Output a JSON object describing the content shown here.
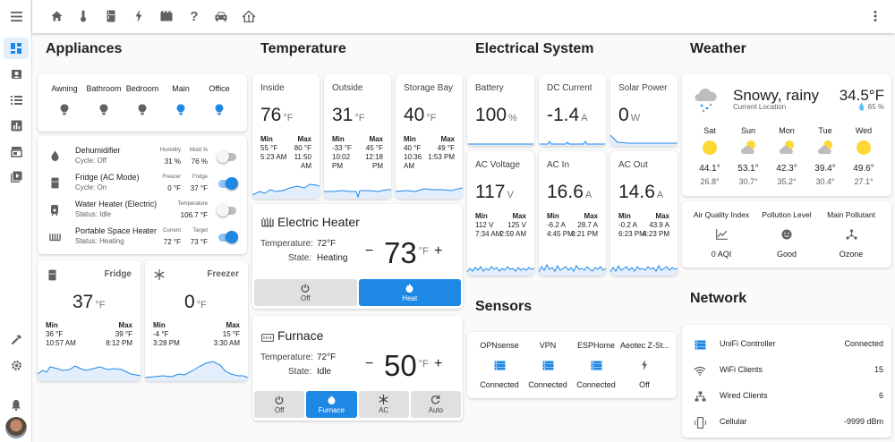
{
  "colors": {
    "accent": "#1e88e5",
    "sun": "#fdd835",
    "inactive": "#616161"
  },
  "topbar": {
    "icons": [
      "menu-icon",
      "home-icon",
      "thermometer-icon",
      "fridge-icon",
      "lightning-icon",
      "movie-icon",
      "help-icon",
      "car-icon",
      "home-assistant-icon",
      "more-vertical-icon"
    ]
  },
  "sidebar": {
    "icons": [
      "dashboard-icon",
      "account-box-icon",
      "list-icon",
      "chart-icon",
      "store-icon",
      "play-box-icon",
      "hammer-icon",
      "gear-icon",
      "bell-icon",
      "avatar"
    ]
  },
  "appliances": {
    "title": "Appliances",
    "lights": [
      {
        "label": "Awning",
        "on": false
      },
      {
        "label": "Bathroom",
        "on": false
      },
      {
        "label": "Bedroom",
        "on": false
      },
      {
        "label": "Main",
        "on": true
      },
      {
        "label": "Office",
        "on": true
      }
    ],
    "devices": [
      {
        "name": "Dehumidifier",
        "status": "Cycle: Off",
        "a_label": "Humidity",
        "a_val": "31 %",
        "b_label": "Mold %",
        "b_val": "76 %",
        "on": false
      },
      {
        "name": "Fridge (AC Mode)",
        "status": "Cycle: On",
        "a_label": "Freezer",
        "a_val": "0 °F",
        "b_label": "Fridge",
        "b_val": "37 °F",
        "on": true
      },
      {
        "name": "Water Heater (Electric)",
        "status": "Status: Idle",
        "a_label": "",
        "a_val": "",
        "b_label": "Temperature",
        "b_val": "106.7 °F",
        "on": false
      },
      {
        "name": "Portable Space Heater",
        "status": "Status: Heating",
        "a_label": "Current",
        "a_val": "72 °F",
        "b_label": "Target",
        "b_val": "73 °F",
        "on": true
      }
    ],
    "fridge": {
      "name": "Fridge",
      "value": "37",
      "unit": "°F",
      "min_label": "Min",
      "min_val": "36 °F",
      "min_time": "10:57 AM",
      "max_label": "Max",
      "max_val": "39 °F",
      "max_time": "8:12 PM"
    },
    "freezer": {
      "name": "Freezer",
      "value": "0",
      "unit": "°F",
      "min_label": "Min",
      "min_val": "-4 °F",
      "min_time": "3:28 PM",
      "max_label": "Max",
      "max_val": "15 °F",
      "max_time": "3:30 AM"
    }
  },
  "temperature": {
    "title": "Temperature",
    "sensors": [
      {
        "name": "Inside",
        "value": "76",
        "unit": "°F",
        "min_val": "55 °F",
        "min_time": "5:23 AM",
        "max_val": "80 °F",
        "max_time": "11:50 AM"
      },
      {
        "name": "Outside",
        "value": "31",
        "unit": "°F",
        "min_val": "-33 °F",
        "min_time": "10:02 PM",
        "max_val": "45 °F",
        "max_time": "12:18 PM"
      },
      {
        "name": "Storage Bay",
        "value": "40",
        "unit": "°F",
        "min_val": "40 °F",
        "min_time": "10:36 AM",
        "max_val": "49 °F",
        "max_time": "1:53 PM"
      }
    ],
    "min_label": "Min",
    "max_label": "Max",
    "heater": {
      "name": "Electric Heater",
      "temp_label": "Temperature:",
      "temp_val": "72°F",
      "state_label": "State:",
      "state_val": "Heating",
      "target": "73",
      "unit": "°F",
      "minus": "−",
      "plus": "+",
      "modes": [
        {
          "label": "Off",
          "active": false
        },
        {
          "label": "Heat",
          "active": true
        }
      ]
    },
    "furnace": {
      "name": "Furnace",
      "temp_label": "Temperature:",
      "temp_val": "72°F",
      "state_label": "State:",
      "state_val": "Idle",
      "target": "50",
      "unit": "°F",
      "minus": "−",
      "plus": "+",
      "modes": [
        {
          "label": "Off",
          "active": false
        },
        {
          "label": "Furnace",
          "active": true
        },
        {
          "label": "AC",
          "active": false
        },
        {
          "label": "Auto",
          "active": false
        }
      ]
    }
  },
  "electrical": {
    "title": "Electrical System",
    "top": [
      {
        "name": "Battery",
        "value": "100",
        "unit": "%"
      },
      {
        "name": "DC Current",
        "value": "-1.4",
        "unit": "A"
      },
      {
        "name": "Solar Power",
        "value": "0",
        "unit": "W"
      }
    ],
    "bottom": [
      {
        "name": "AC Voltage",
        "value": "117",
        "unit": "V",
        "min_val": "112 V",
        "min_time": "7:34 AM",
        "max_val": "125 V",
        "max_time": "2:59 AM"
      },
      {
        "name": "AC In",
        "value": "16.6",
        "unit": "A",
        "min_val": "-6.2 A",
        "min_time": "4:45 PM",
        "max_val": "28.7 A",
        "max_time": "3:21 PM"
      },
      {
        "name": "AC Out",
        "value": "14.6",
        "unit": "A",
        "min_val": "-0.2 A",
        "min_time": "6:23 PM",
        "max_val": "43.9 A",
        "max_time": "4:23 PM"
      }
    ],
    "min_label": "Min",
    "max_label": "Max"
  },
  "sensors": {
    "title": "Sensors",
    "items": [
      {
        "name": "OPNsense",
        "state": "Connected",
        "icon": "server-icon"
      },
      {
        "name": "VPN",
        "state": "Connected",
        "icon": "server-icon"
      },
      {
        "name": "ESPHome",
        "state": "Connected",
        "icon": "server-icon"
      },
      {
        "name": "Aeotec Z-St...",
        "state": "Off",
        "icon": "lightning-icon"
      }
    ]
  },
  "weather": {
    "title": "Weather",
    "condition": "Snowy, rainy",
    "location": "Current Location",
    "temp": "34.5°F",
    "humidity": "65 %",
    "forecast": [
      {
        "day": "Sat",
        "icon": "sunny-icon",
        "high": "44.1°",
        "low": "26.8°"
      },
      {
        "day": "Sun",
        "icon": "partly-cloudy-icon",
        "high": "53.1°",
        "low": "30.7°"
      },
      {
        "day": "Mon",
        "icon": "partly-cloudy-icon",
        "high": "42.3°",
        "low": "35.2°"
      },
      {
        "day": "Tue",
        "icon": "partly-cloudy-icon",
        "high": "39.4°",
        "low": "30.4°"
      },
      {
        "day": "Wed",
        "icon": "sunny-icon",
        "high": "49.6°",
        "low": "27.1°"
      }
    ],
    "air": [
      {
        "label": "Air Quality Index",
        "value": "0 AQI",
        "icon": "chart-line-icon"
      },
      {
        "label": "Pollution Level",
        "value": "Good",
        "icon": "smile-icon"
      },
      {
        "label": "Main Pollutant",
        "value": "Ozone",
        "icon": "molecule-icon"
      }
    ]
  },
  "network": {
    "title": "Network",
    "rows": [
      {
        "label": "UniFi Controller",
        "value": "Connected",
        "icon": "server-icon"
      },
      {
        "label": "WiFi Clients",
        "value": "15",
        "icon": "wifi-icon"
      },
      {
        "label": "Wired Clients",
        "value": "6",
        "icon": "lan-icon"
      },
      {
        "label": "Cellular",
        "value": "-9999 dBm",
        "icon": "cellphone-icon"
      }
    ]
  }
}
